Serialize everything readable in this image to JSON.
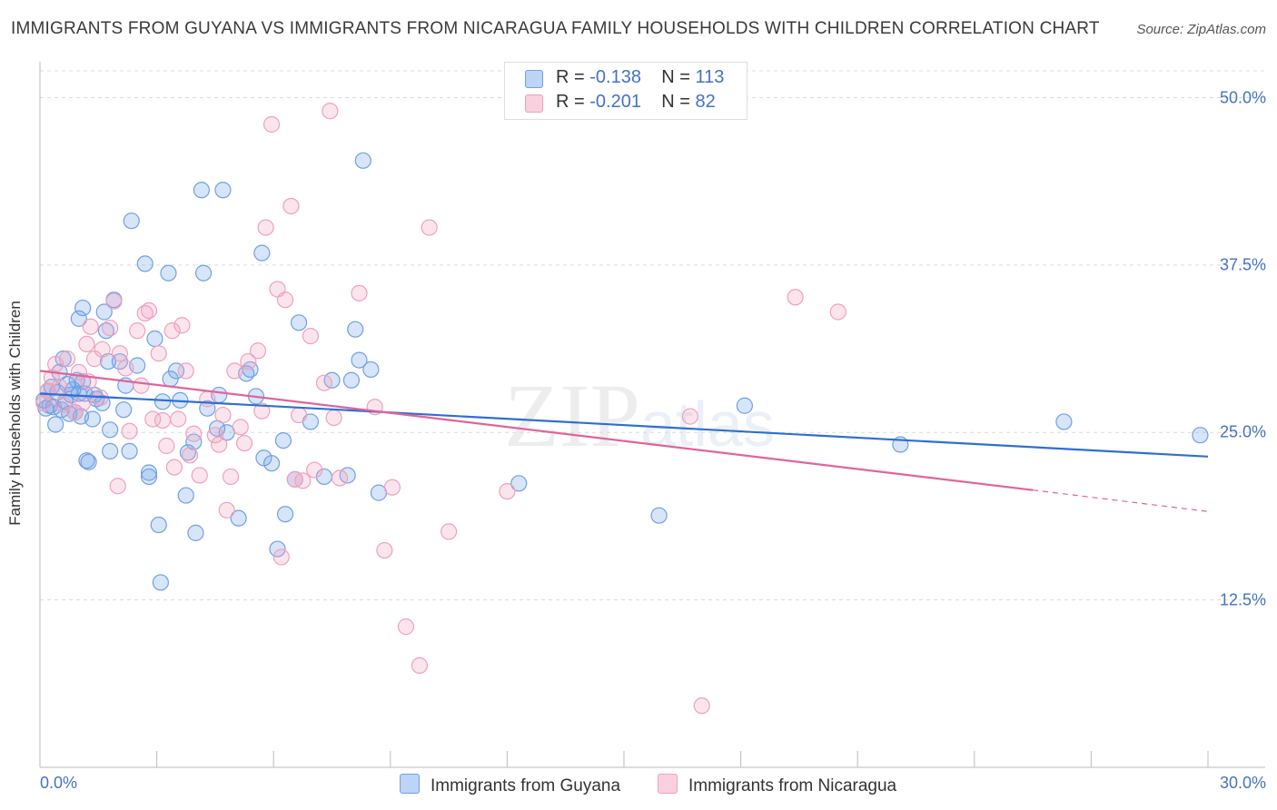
{
  "title": "IMMIGRANTS FROM GUYANA VS IMMIGRANTS FROM NICARAGUA FAMILY HOUSEHOLDS WITH CHILDREN CORRELATION CHART",
  "source": "Source: ZipAtlas.com",
  "watermark": {
    "zip": "ZIP",
    "atlas": "atlas"
  },
  "legend_top": [
    {
      "r_label": "R =",
      "r": "-0.138",
      "n_label": "N =",
      "n": "113"
    },
    {
      "r_label": "R =",
      "r": "-0.201",
      "n_label": "N =",
      "n": "82"
    }
  ],
  "chart_data": {
    "type": "scatter",
    "title": "IMMIGRANTS FROM GUYANA VS IMMIGRANTS FROM NICARAGUA FAMILY HOUSEHOLDS WITH CHILDREN CORRELATION CHART",
    "xlabel": "",
    "ylabel": "Family Households with Children",
    "xlim": [
      0,
      30
    ],
    "ylim": [
      0,
      52
    ],
    "x_tick_labels": [
      "0.0%",
      "30.0%"
    ],
    "y_ticks": [
      12.5,
      25.0,
      37.5,
      50.0
    ],
    "y_tick_labels": [
      "12.5%",
      "25.0%",
      "37.5%",
      "50.0%"
    ],
    "grid": "horizontal dashed",
    "legend_position": "bottom",
    "series": [
      {
        "name": "Immigrants from Guyana",
        "color": "#6fa0e6",
        "trend_color": "#2e6fd4",
        "trend": {
          "x0": 0.0,
          "y0": 27.9,
          "x1": 30.0,
          "y1": 23.2
        },
        "points": [
          [
            0.1,
            27.4
          ],
          [
            0.15,
            26.8
          ],
          [
            0.2,
            28.1
          ],
          [
            0.25,
            27.0
          ],
          [
            0.3,
            28.4
          ],
          [
            0.35,
            26.9
          ],
          [
            0.4,
            25.6
          ],
          [
            0.45,
            28.0
          ],
          [
            0.5,
            29.5
          ],
          [
            0.55,
            26.7
          ],
          [
            0.6,
            30.5
          ],
          [
            0.65,
            27.3
          ],
          [
            0.7,
            28.6
          ],
          [
            0.75,
            26.4
          ],
          [
            0.8,
            27.8
          ],
          [
            0.85,
            28.2
          ],
          [
            0.9,
            26.5
          ],
          [
            0.95,
            28.9
          ],
          [
            1.0,
            33.5
          ],
          [
            1.0,
            27.9
          ],
          [
            1.05,
            26.2
          ],
          [
            1.1,
            28.8
          ],
          [
            1.1,
            34.3
          ],
          [
            1.15,
            27.9
          ],
          [
            1.2,
            22.9
          ],
          [
            1.25,
            22.8
          ],
          [
            1.35,
            26.0
          ],
          [
            1.4,
            27.8
          ],
          [
            1.45,
            27.5
          ],
          [
            1.6,
            27.2
          ],
          [
            1.65,
            34.0
          ],
          [
            1.7,
            32.6
          ],
          [
            1.75,
            30.3
          ],
          [
            1.8,
            23.6
          ],
          [
            1.8,
            25.2
          ],
          [
            1.9,
            34.9
          ],
          [
            2.05,
            30.3
          ],
          [
            2.15,
            26.7
          ],
          [
            2.2,
            28.5
          ],
          [
            2.3,
            23.6
          ],
          [
            2.35,
            40.8
          ],
          [
            2.5,
            30.0
          ],
          [
            2.7,
            37.6
          ],
          [
            2.8,
            22.0
          ],
          [
            2.8,
            21.7
          ],
          [
            2.95,
            32.0
          ],
          [
            3.05,
            18.1
          ],
          [
            3.1,
            13.8
          ],
          [
            3.15,
            27.3
          ],
          [
            3.3,
            36.9
          ],
          [
            3.35,
            29.0
          ],
          [
            3.5,
            29.6
          ],
          [
            3.6,
            27.4
          ],
          [
            3.75,
            20.3
          ],
          [
            3.8,
            23.5
          ],
          [
            3.95,
            24.3
          ],
          [
            4.0,
            17.5
          ],
          [
            4.15,
            43.1
          ],
          [
            4.2,
            36.9
          ],
          [
            4.3,
            26.8
          ],
          [
            4.55,
            25.3
          ],
          [
            4.6,
            27.8
          ],
          [
            4.7,
            43.1
          ],
          [
            4.8,
            25.0
          ],
          [
            5.1,
            18.6
          ],
          [
            5.3,
            29.4
          ],
          [
            5.4,
            29.7
          ],
          [
            5.55,
            27.7
          ],
          [
            5.7,
            38.4
          ],
          [
            5.75,
            23.1
          ],
          [
            5.95,
            22.7
          ],
          [
            6.1,
            16.3
          ],
          [
            6.25,
            24.4
          ],
          [
            6.3,
            18.9
          ],
          [
            6.55,
            21.5
          ],
          [
            6.65,
            33.2
          ],
          [
            6.95,
            25.8
          ],
          [
            7.3,
            21.7
          ],
          [
            7.5,
            28.9
          ],
          [
            7.9,
            21.8
          ],
          [
            8.0,
            28.9
          ],
          [
            8.1,
            32.7
          ],
          [
            8.2,
            30.4
          ],
          [
            8.5,
            29.7
          ],
          [
            8.3,
            45.3
          ],
          [
            8.7,
            20.5
          ],
          [
            12.3,
            21.2
          ],
          [
            15.9,
            18.8
          ],
          [
            18.1,
            27.0
          ],
          [
            22.1,
            24.1
          ],
          [
            26.3,
            25.8
          ],
          [
            29.8,
            24.8
          ]
        ]
      },
      {
        "name": "Immigrants from Nicaragua",
        "color": "#f0a0bd",
        "trend_color": "#e0649a",
        "trend": {
          "x0": 0.0,
          "y0": 29.6,
          "x1": 25.5,
          "y1": 20.7
        },
        "trend_dashed_to": {
          "x": 30.0,
          "y": 19.1
        },
        "points": [
          [
            0.1,
            27.2
          ],
          [
            0.2,
            28.1
          ],
          [
            0.3,
            29.1
          ],
          [
            0.4,
            30.1
          ],
          [
            0.5,
            28.4
          ],
          [
            0.6,
            27.1
          ],
          [
            0.7,
            30.5
          ],
          [
            0.9,
            26.5
          ],
          [
            1.0,
            29.5
          ],
          [
            1.1,
            27.2
          ],
          [
            1.2,
            31.6
          ],
          [
            1.25,
            28.8
          ],
          [
            1.3,
            32.9
          ],
          [
            1.4,
            30.5
          ],
          [
            1.55,
            27.6
          ],
          [
            1.6,
            31.2
          ],
          [
            1.8,
            32.8
          ],
          [
            1.9,
            34.8
          ],
          [
            2.0,
            21.0
          ],
          [
            2.05,
            30.9
          ],
          [
            2.2,
            29.8
          ],
          [
            2.3,
            25.1
          ],
          [
            2.5,
            32.6
          ],
          [
            2.6,
            28.5
          ],
          [
            2.7,
            33.9
          ],
          [
            2.8,
            34.1
          ],
          [
            2.9,
            26.0
          ],
          [
            3.05,
            30.9
          ],
          [
            3.15,
            25.9
          ],
          [
            3.25,
            24.0
          ],
          [
            3.4,
            32.6
          ],
          [
            3.45,
            22.4
          ],
          [
            3.55,
            26.0
          ],
          [
            3.65,
            33.0
          ],
          [
            3.75,
            29.6
          ],
          [
            3.85,
            23.3
          ],
          [
            3.95,
            24.9
          ],
          [
            4.1,
            21.8
          ],
          [
            4.3,
            27.5
          ],
          [
            4.5,
            24.8
          ],
          [
            4.6,
            24.1
          ],
          [
            4.7,
            26.3
          ],
          [
            4.8,
            19.2
          ],
          [
            4.9,
            21.7
          ],
          [
            5.0,
            29.6
          ],
          [
            5.15,
            25.4
          ],
          [
            5.25,
            24.2
          ],
          [
            5.35,
            30.3
          ],
          [
            5.6,
            31.1
          ],
          [
            5.7,
            26.6
          ],
          [
            5.8,
            40.3
          ],
          [
            5.95,
            48.0
          ],
          [
            6.1,
            35.7
          ],
          [
            6.2,
            15.7
          ],
          [
            6.3,
            34.9
          ],
          [
            6.45,
            41.9
          ],
          [
            6.55,
            21.5
          ],
          [
            6.65,
            26.3
          ],
          [
            6.75,
            21.4
          ],
          [
            6.95,
            32.2
          ],
          [
            7.05,
            22.2
          ],
          [
            7.3,
            28.7
          ],
          [
            7.45,
            49.0
          ],
          [
            7.55,
            26.1
          ],
          [
            7.7,
            21.6
          ],
          [
            8.2,
            35.4
          ],
          [
            8.6,
            26.9
          ],
          [
            8.85,
            16.2
          ],
          [
            9.05,
            20.9
          ],
          [
            9.4,
            10.5
          ],
          [
            9.75,
            7.6
          ],
          [
            10.0,
            40.3
          ],
          [
            10.5,
            17.6
          ],
          [
            12.0,
            20.6
          ],
          [
            16.7,
            26.2
          ],
          [
            17.0,
            4.6
          ],
          [
            19.4,
            35.1
          ],
          [
            20.5,
            34.0
          ]
        ]
      }
    ]
  },
  "legend_bottom": [
    {
      "label": "Immigrants from Guyana"
    },
    {
      "label": "Immigrants from Nicaragua"
    }
  ]
}
